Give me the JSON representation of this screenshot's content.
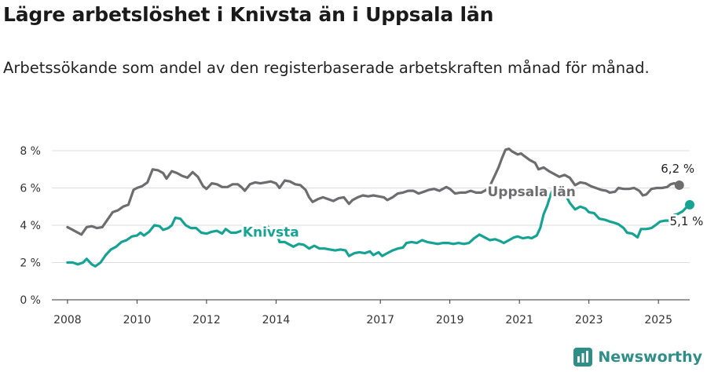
{
  "title": "Lägre arbetslöshet i Knivsta än i Uppsala län",
  "subtitle": "Arbetssökande som andel av den registerbaserade arbetskraften månad för månad.",
  "brand": {
    "name": "Newsworthy",
    "icon": "newsworthy-logo-icon"
  },
  "colors": {
    "knivsta": "#16a394",
    "uppsala": "#6d6d70",
    "grid": "#dddddd"
  },
  "chart_data": {
    "type": "line",
    "title": "Lägre arbetslöshet i Knivsta än i Uppsala län",
    "ylabel": "",
    "xlim": [
      2007.55,
      2025.9
    ],
    "ylim": [
      0,
      8
    ],
    "y_ticks": [
      {
        "value": 0,
        "label": "0 %"
      },
      {
        "value": 2,
        "label": "2 %"
      },
      {
        "value": 4,
        "label": "4 %"
      },
      {
        "value": 6,
        "label": "6 %"
      },
      {
        "value": 8,
        "label": "8 %"
      }
    ],
    "x_ticks": [
      {
        "value": 2008,
        "label": "2008"
      },
      {
        "value": 2010,
        "label": "2010"
      },
      {
        "value": 2012,
        "label": "2012"
      },
      {
        "value": 2014,
        "label": "2014"
      },
      {
        "value": 2017,
        "label": "2017"
      },
      {
        "value": 2019,
        "label": "2019"
      },
      {
        "value": 2021,
        "label": "2021"
      },
      {
        "value": 2023,
        "label": "2023"
      },
      {
        "value": 2025,
        "label": "2025"
      }
    ],
    "grid": true,
    "series": [
      {
        "name": "Uppsala län",
        "color": "#6d6d70",
        "end_label": "6,2 %",
        "points": [
          [
            2008.0,
            3.9
          ],
          [
            2008.15,
            3.75
          ],
          [
            2008.3,
            3.6
          ],
          [
            2008.4,
            3.5
          ],
          [
            2008.55,
            3.9
          ],
          [
            2008.7,
            3.95
          ],
          [
            2008.85,
            3.85
          ],
          [
            2009.0,
            3.9
          ],
          [
            2009.15,
            4.3
          ],
          [
            2009.3,
            4.7
          ],
          [
            2009.45,
            4.8
          ],
          [
            2009.6,
            5.0
          ],
          [
            2009.75,
            5.1
          ],
          [
            2009.9,
            5.9
          ],
          [
            2010.0,
            6.0
          ],
          [
            2010.15,
            6.1
          ],
          [
            2010.3,
            6.3
          ],
          [
            2010.45,
            7.0
          ],
          [
            2010.6,
            6.95
          ],
          [
            2010.75,
            6.8
          ],
          [
            2010.85,
            6.5
          ],
          [
            2011.0,
            6.9
          ],
          [
            2011.15,
            6.8
          ],
          [
            2011.3,
            6.65
          ],
          [
            2011.45,
            6.55
          ],
          [
            2011.6,
            6.85
          ],
          [
            2011.75,
            6.6
          ],
          [
            2011.9,
            6.1
          ],
          [
            2012.0,
            5.95
          ],
          [
            2012.15,
            6.25
          ],
          [
            2012.3,
            6.2
          ],
          [
            2012.45,
            6.05
          ],
          [
            2012.6,
            6.05
          ],
          [
            2012.75,
            6.2
          ],
          [
            2012.9,
            6.2
          ],
          [
            2013.0,
            6.05
          ],
          [
            2013.1,
            5.85
          ],
          [
            2013.25,
            6.2
          ],
          [
            2013.4,
            6.3
          ],
          [
            2013.55,
            6.25
          ],
          [
            2013.7,
            6.3
          ],
          [
            2013.85,
            6.35
          ],
          [
            2014.0,
            6.25
          ],
          [
            2014.1,
            6.0
          ],
          [
            2014.25,
            6.4
          ],
          [
            2014.4,
            6.35
          ],
          [
            2014.55,
            6.2
          ],
          [
            2014.7,
            6.15
          ],
          [
            2014.85,
            5.9
          ],
          [
            2014.95,
            5.5
          ],
          [
            2015.05,
            5.25
          ],
          [
            2015.2,
            5.4
          ],
          [
            2015.35,
            5.5
          ],
          [
            2015.5,
            5.4
          ],
          [
            2015.65,
            5.3
          ],
          [
            2015.8,
            5.45
          ],
          [
            2015.95,
            5.5
          ],
          [
            2016.1,
            5.15
          ],
          [
            2016.2,
            5.35
          ],
          [
            2016.35,
            5.5
          ],
          [
            2016.5,
            5.6
          ],
          [
            2016.65,
            5.55
          ],
          [
            2016.8,
            5.6
          ],
          [
            2016.95,
            5.55
          ],
          [
            2017.1,
            5.5
          ],
          [
            2017.2,
            5.35
          ],
          [
            2017.35,
            5.5
          ],
          [
            2017.5,
            5.7
          ],
          [
            2017.65,
            5.75
          ],
          [
            2017.8,
            5.85
          ],
          [
            2017.95,
            5.85
          ],
          [
            2018.1,
            5.7
          ],
          [
            2018.25,
            5.8
          ],
          [
            2018.4,
            5.9
          ],
          [
            2018.55,
            5.95
          ],
          [
            2018.7,
            5.85
          ],
          [
            2018.8,
            5.95
          ],
          [
            2018.9,
            6.05
          ],
          [
            2019.0,
            5.95
          ],
          [
            2019.15,
            5.7
          ],
          [
            2019.3,
            5.75
          ],
          [
            2019.45,
            5.75
          ],
          [
            2019.6,
            5.85
          ],
          [
            2019.75,
            5.75
          ],
          [
            2019.9,
            5.75
          ],
          [
            2020.05,
            5.9
          ],
          [
            2020.15,
            6.1
          ],
          [
            2020.3,
            6.7
          ],
          [
            2020.4,
            7.1
          ],
          [
            2020.5,
            7.6
          ],
          [
            2020.6,
            8.05
          ],
          [
            2020.7,
            8.1
          ],
          [
            2020.8,
            7.95
          ],
          [
            2020.95,
            7.8
          ],
          [
            2021.05,
            7.85
          ],
          [
            2021.15,
            7.7
          ],
          [
            2021.3,
            7.5
          ],
          [
            2021.45,
            7.35
          ],
          [
            2021.55,
            7.0
          ],
          [
            2021.7,
            7.1
          ],
          [
            2021.85,
            6.9
          ],
          [
            2022.0,
            6.75
          ],
          [
            2022.15,
            6.6
          ],
          [
            2022.3,
            6.7
          ],
          [
            2022.45,
            6.55
          ],
          [
            2022.6,
            6.15
          ],
          [
            2022.75,
            6.3
          ],
          [
            2022.9,
            6.25
          ],
          [
            2023.05,
            6.1
          ],
          [
            2023.2,
            6.0
          ],
          [
            2023.35,
            5.9
          ],
          [
            2023.5,
            5.85
          ],
          [
            2023.6,
            5.75
          ],
          [
            2023.75,
            5.8
          ],
          [
            2023.85,
            6.0
          ],
          [
            2024.0,
            5.95
          ],
          [
            2024.15,
            5.95
          ],
          [
            2024.3,
            6.0
          ],
          [
            2024.45,
            5.85
          ],
          [
            2024.55,
            5.6
          ],
          [
            2024.65,
            5.65
          ],
          [
            2024.8,
            5.95
          ],
          [
            2024.95,
            6.0
          ],
          [
            2025.1,
            6.0
          ],
          [
            2025.25,
            6.05
          ],
          [
            2025.35,
            6.2
          ],
          [
            2025.45,
            6.25
          ],
          [
            2025.55,
            6.2
          ],
          [
            2025.6,
            6.15
          ]
        ]
      },
      {
        "name": "Knivsta",
        "color": "#16a394",
        "end_label": "5,1 %",
        "points": [
          [
            2008.0,
            2.0
          ],
          [
            2008.15,
            2.0
          ],
          [
            2008.3,
            1.9
          ],
          [
            2008.45,
            2.0
          ],
          [
            2008.55,
            2.2
          ],
          [
            2008.7,
            1.9
          ],
          [
            2008.8,
            1.8
          ],
          [
            2008.95,
            2.0
          ],
          [
            2009.1,
            2.4
          ],
          [
            2009.25,
            2.7
          ],
          [
            2009.4,
            2.85
          ],
          [
            2009.55,
            3.1
          ],
          [
            2009.7,
            3.2
          ],
          [
            2009.85,
            3.4
          ],
          [
            2010.0,
            3.45
          ],
          [
            2010.1,
            3.6
          ],
          [
            2010.2,
            3.45
          ],
          [
            2010.35,
            3.65
          ],
          [
            2010.5,
            4.0
          ],
          [
            2010.65,
            3.95
          ],
          [
            2010.75,
            3.75
          ],
          [
            2010.9,
            3.85
          ],
          [
            2011.0,
            4.0
          ],
          [
            2011.1,
            4.4
          ],
          [
            2011.25,
            4.35
          ],
          [
            2011.4,
            4.0
          ],
          [
            2011.55,
            3.85
          ],
          [
            2011.7,
            3.85
          ],
          [
            2011.85,
            3.6
          ],
          [
            2012.0,
            3.55
          ],
          [
            2012.15,
            3.65
          ],
          [
            2012.3,
            3.7
          ],
          [
            2012.45,
            3.55
          ],
          [
            2012.55,
            3.8
          ],
          [
            2012.7,
            3.6
          ],
          [
            2012.85,
            3.6
          ],
          [
            2013.0,
            3.7
          ],
          [
            2013.15,
            3.65
          ],
          [
            2013.3,
            3.7
          ],
          [
            2013.45,
            3.6
          ],
          [
            2013.6,
            3.75
          ],
          [
            2013.75,
            3.95
          ],
          [
            2013.85,
            3.75
          ],
          [
            2014.0,
            3.8
          ],
          [
            2014.1,
            3.1
          ],
          [
            2014.25,
            3.1
          ],
          [
            2014.4,
            2.95
          ],
          [
            2014.5,
            2.85
          ],
          [
            2014.65,
            3.0
          ],
          [
            2014.8,
            2.95
          ],
          [
            2014.95,
            2.75
          ],
          [
            2015.1,
            2.9
          ],
          [
            2015.25,
            2.75
          ],
          [
            2015.4,
            2.75
          ],
          [
            2015.55,
            2.7
          ],
          [
            2015.7,
            2.65
          ],
          [
            2015.85,
            2.7
          ],
          [
            2016.0,
            2.65
          ],
          [
            2016.1,
            2.35
          ],
          [
            2016.25,
            2.5
          ],
          [
            2016.4,
            2.55
          ],
          [
            2016.55,
            2.5
          ],
          [
            2016.7,
            2.6
          ],
          [
            2016.8,
            2.4
          ],
          [
            2016.95,
            2.55
          ],
          [
            2017.05,
            2.35
          ],
          [
            2017.2,
            2.5
          ],
          [
            2017.35,
            2.65
          ],
          [
            2017.5,
            2.75
          ],
          [
            2017.65,
            2.8
          ],
          [
            2017.75,
            3.05
          ],
          [
            2017.9,
            3.1
          ],
          [
            2018.05,
            3.05
          ],
          [
            2018.2,
            3.2
          ],
          [
            2018.35,
            3.1
          ],
          [
            2018.5,
            3.05
          ],
          [
            2018.65,
            3.0
          ],
          [
            2018.8,
            3.05
          ],
          [
            2018.95,
            3.05
          ],
          [
            2019.1,
            3.0
          ],
          [
            2019.25,
            3.05
          ],
          [
            2019.4,
            3.0
          ],
          [
            2019.55,
            3.05
          ],
          [
            2019.7,
            3.3
          ],
          [
            2019.85,
            3.5
          ],
          [
            2020.0,
            3.35
          ],
          [
            2020.15,
            3.2
          ],
          [
            2020.3,
            3.25
          ],
          [
            2020.45,
            3.15
          ],
          [
            2020.55,
            3.05
          ],
          [
            2020.7,
            3.2
          ],
          [
            2020.85,
            3.35
          ],
          [
            2020.95,
            3.4
          ],
          [
            2021.1,
            3.3
          ],
          [
            2021.25,
            3.35
          ],
          [
            2021.35,
            3.3
          ],
          [
            2021.5,
            3.45
          ],
          [
            2021.6,
            3.85
          ],
          [
            2021.7,
            4.6
          ],
          [
            2021.8,
            5.05
          ],
          [
            2021.9,
            5.65
          ],
          [
            2022.0,
            6.05
          ],
          [
            2022.1,
            5.9
          ],
          [
            2022.2,
            5.8
          ],
          [
            2022.35,
            5.55
          ],
          [
            2022.45,
            5.2
          ],
          [
            2022.6,
            4.85
          ],
          [
            2022.75,
            5.0
          ],
          [
            2022.9,
            4.9
          ],
          [
            2023.0,
            4.7
          ],
          [
            2023.15,
            4.65
          ],
          [
            2023.3,
            4.35
          ],
          [
            2023.45,
            4.3
          ],
          [
            2023.6,
            4.2
          ],
          [
            2023.7,
            4.15
          ],
          [
            2023.85,
            4.05
          ],
          [
            2024.0,
            3.85
          ],
          [
            2024.1,
            3.6
          ],
          [
            2024.25,
            3.55
          ],
          [
            2024.4,
            3.35
          ],
          [
            2024.5,
            3.8
          ],
          [
            2024.65,
            3.8
          ],
          [
            2024.8,
            3.85
          ],
          [
            2024.95,
            4.05
          ],
          [
            2025.05,
            4.2
          ],
          [
            2025.2,
            4.25
          ],
          [
            2025.35,
            4.25
          ],
          [
            2025.45,
            4.55
          ],
          [
            2025.55,
            4.6
          ],
          [
            2025.7,
            4.75
          ],
          [
            2025.85,
            5.05
          ],
          [
            2025.9,
            5.1
          ]
        ]
      }
    ]
  }
}
